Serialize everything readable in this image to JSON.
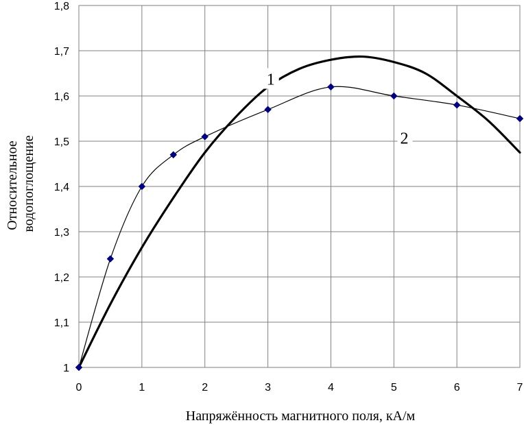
{
  "chart_data": {
    "type": "line",
    "title": "",
    "xlabel": "Напряжённость магнитного поля, кА/м",
    "ylabel_lines": [
      "Относительное",
      "водопоглощение"
    ],
    "xlim": [
      0,
      7
    ],
    "ylim": [
      1,
      1.8
    ],
    "x_ticks": [
      0,
      1,
      2,
      3,
      4,
      5,
      6,
      7
    ],
    "x_tick_labels": [
      "0",
      "1",
      "2",
      "3",
      "4",
      "5",
      "6",
      "7"
    ],
    "y_ticks": [
      1,
      1.1,
      1.2,
      1.3,
      1.4,
      1.5,
      1.6,
      1.7,
      1.8
    ],
    "y_tick_labels": [
      "1",
      "1,1",
      "1,2",
      "1,3",
      "1,4",
      "1,5",
      "1,6",
      "1,7",
      "1,8"
    ],
    "grid": true,
    "legend": "none",
    "series": [
      {
        "name": "1",
        "style": "thick-line",
        "color": "#000000",
        "x": [
          0,
          0.5,
          1,
          1.5,
          2,
          2.5,
          3,
          3.5,
          4,
          4.5,
          5,
          5.5,
          6,
          6.5,
          7
        ],
        "y": [
          1.0,
          1.14,
          1.265,
          1.375,
          1.475,
          1.555,
          1.62,
          1.66,
          1.68,
          1.687,
          1.675,
          1.65,
          1.6,
          1.545,
          1.475
        ]
      },
      {
        "name": "2",
        "style": "thin-line-with-markers",
        "color": "#000000",
        "marker_color": "#00007f",
        "x": [
          0,
          0.5,
          1,
          1.5,
          2,
          3,
          4,
          5,
          6,
          7
        ],
        "y": [
          1.0,
          1.24,
          1.4,
          1.47,
          1.51,
          1.57,
          1.62,
          1.6,
          1.58,
          1.55
        ]
      }
    ],
    "annotations": [
      {
        "text": "1",
        "x": 2.98,
        "y": 1.625
      },
      {
        "text": "2",
        "x": 5.1,
        "y": 1.495
      }
    ]
  }
}
